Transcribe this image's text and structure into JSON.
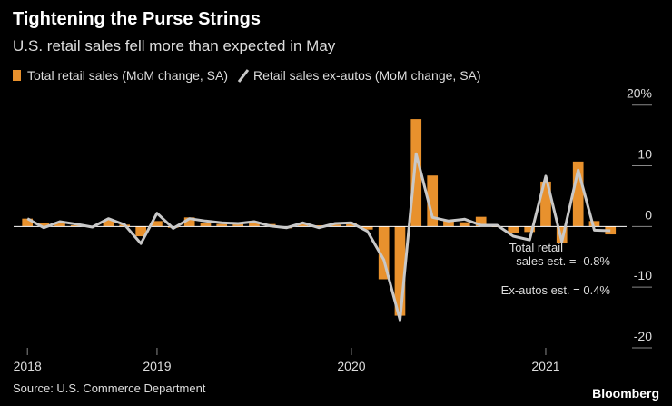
{
  "chart_data": {
    "type": "bar",
    "title": "Tightening the Purse Strings",
    "subtitle": "U.S. retail sales fell more than expected in May",
    "source": "Source: U.S. Commerce Department",
    "brand": "Bloomberg",
    "annotations": [
      "Total retail",
      "sales est. = -0.8%",
      "Ex-autos est. = 0.4%"
    ],
    "x": [
      2018.333,
      2018.417,
      2018.5,
      2018.583,
      2018.667,
      2018.75,
      2018.833,
      2018.917,
      2019,
      2019.083,
      2019.167,
      2019.25,
      2019.333,
      2019.417,
      2019.5,
      2019.583,
      2019.667,
      2019.75,
      2019.833,
      2019.917,
      2020,
      2020.083,
      2020.167,
      2020.25,
      2020.333,
      2020.417,
      2020.5,
      2020.583,
      2020.667,
      2020.75,
      2020.833,
      2020.917,
      2021,
      2021.083,
      2021.167,
      2021.25,
      2021.333
    ],
    "series": [
      {
        "name": "Total retail sales (MoM change, SA)",
        "type": "bar",
        "color": "#e8912d",
        "values": [
          1.3,
          0.5,
          0.5,
          0.2,
          0.1,
          1.1,
          0.3,
          -1.6,
          0.9,
          -0.2,
          1.5,
          0.5,
          0.4,
          0.4,
          0.7,
          0.4,
          -0.3,
          0.4,
          0.2,
          0.3,
          0.6,
          -0.5,
          -8.7,
          -14.7,
          17.7,
          8.4,
          1.1,
          0.7,
          1.6,
          -0.1,
          -1.1,
          -0.9,
          7.4,
          -2.7,
          10.7,
          0.9,
          -1.3
        ]
      },
      {
        "name": "Retail sales ex-autos (MoM change, SA)",
        "type": "line",
        "color": "#c8c8c8",
        "values": [
          1.3,
          -0.2,
          0.8,
          0.4,
          -0.1,
          1.3,
          0.3,
          -2.8,
          2.2,
          -0.3,
          1.3,
          0.9,
          0.6,
          0.5,
          0.8,
          0.1,
          -0.2,
          0.6,
          -0.2,
          0.5,
          0.6,
          -0.8,
          -5.5,
          -15.4,
          12.0,
          1.5,
          0.9,
          1.2,
          0.2,
          0.2,
          -1.6,
          -2.2,
          8.3,
          -2.5,
          9.3,
          -0.6,
          -0.7
        ]
      }
    ],
    "xlim": [
      2018.262,
      2021.416
    ],
    "xticks": [
      {
        "value": 2018.333,
        "label": "2018"
      },
      2019,
      2020,
      2021
    ],
    "ylim": [
      -20,
      23.1
    ],
    "yticks": [
      {
        "value": 20,
        "label": "20%"
      },
      10,
      0,
      -10,
      -20
    ]
  }
}
